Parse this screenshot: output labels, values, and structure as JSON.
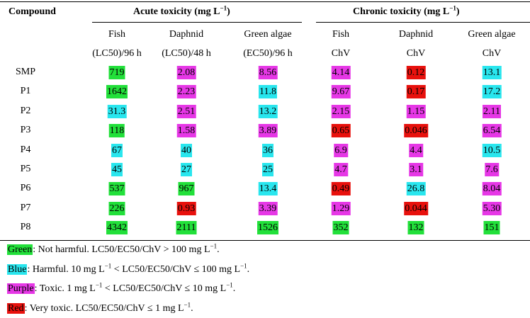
{
  "colors": {
    "green": "#22e03a",
    "blue": "#29e6ee",
    "purple": "#e637e6",
    "red": "#e8110d"
  },
  "header": {
    "compound": "Compound",
    "acute": "Acute toxicity (mg L",
    "chronic": "Chronic toxicity (mg L",
    "unit_exp": "−1",
    "close": ")"
  },
  "columns": [
    {
      "organism": "Fish",
      "metric": "(LC50)/96 h"
    },
    {
      "organism": "Daphnid",
      "metric": "(LC50)/48 h"
    },
    {
      "organism": "Green algae",
      "metric": "(EC50)/96 h"
    },
    {
      "organism": "Fish",
      "metric": "ChV"
    },
    {
      "organism": "Daphnid",
      "metric": "ChV"
    },
    {
      "organism": "Green algae",
      "metric": "ChV"
    }
  ],
  "rows": [
    {
      "name": "SMP",
      "cells": [
        {
          "v": "719",
          "c": "green"
        },
        {
          "v": "2.08",
          "c": "purple"
        },
        {
          "v": "8.56",
          "c": "purple"
        },
        {
          "v": "4.14",
          "c": "purple"
        },
        {
          "v": "0.12",
          "c": "red"
        },
        {
          "v": "13.1",
          "c": "blue"
        }
      ]
    },
    {
      "name": "P1",
      "cells": [
        {
          "v": "1642",
          "c": "green"
        },
        {
          "v": "2.23",
          "c": "purple"
        },
        {
          "v": "11.8",
          "c": "blue"
        },
        {
          "v": "9.67",
          "c": "purple"
        },
        {
          "v": "0.17",
          "c": "red"
        },
        {
          "v": "17.2",
          "c": "blue"
        }
      ]
    },
    {
      "name": "P2",
      "cells": [
        {
          "v": "31.3",
          "c": "blue"
        },
        {
          "v": "2.51",
          "c": "purple"
        },
        {
          "v": "13.2",
          "c": "blue"
        },
        {
          "v": "2.15",
          "c": "purple"
        },
        {
          "v": "1.15",
          "c": "purple"
        },
        {
          "v": "2.11",
          "c": "purple"
        }
      ]
    },
    {
      "name": "P3",
      "cells": [
        {
          "v": "118",
          "c": "green"
        },
        {
          "v": "1.58",
          "c": "purple"
        },
        {
          "v": "3.89",
          "c": "purple"
        },
        {
          "v": "0.65",
          "c": "red"
        },
        {
          "v": "0.046",
          "c": "red"
        },
        {
          "v": "6.54",
          "c": "purple"
        }
      ]
    },
    {
      "name": "P4",
      "cells": [
        {
          "v": "67",
          "c": "blue"
        },
        {
          "v": "40",
          "c": "blue"
        },
        {
          "v": "36",
          "c": "blue"
        },
        {
          "v": "6.9",
          "c": "purple"
        },
        {
          "v": "4.4",
          "c": "purple"
        },
        {
          "v": "10.5",
          "c": "blue"
        }
      ]
    },
    {
      "name": "P5",
      "cells": [
        {
          "v": "45",
          "c": "blue"
        },
        {
          "v": "27",
          "c": "blue"
        },
        {
          "v": "25",
          "c": "blue"
        },
        {
          "v": "4.7",
          "c": "purple"
        },
        {
          "v": "3.1",
          "c": "purple"
        },
        {
          "v": "7.6",
          "c": "purple"
        }
      ]
    },
    {
      "name": "P6",
      "cells": [
        {
          "v": "537",
          "c": "green"
        },
        {
          "v": "967",
          "c": "green"
        },
        {
          "v": "13.4",
          "c": "blue"
        },
        {
          "v": "0.49",
          "c": "red"
        },
        {
          "v": "26.8",
          "c": "blue"
        },
        {
          "v": "8.04",
          "c": "purple"
        }
      ]
    },
    {
      "name": "P7",
      "cells": [
        {
          "v": "226",
          "c": "green"
        },
        {
          "v": "0.93",
          "c": "red"
        },
        {
          "v": "3.39",
          "c": "purple"
        },
        {
          "v": "1.29",
          "c": "purple"
        },
        {
          "v": "0.044",
          "c": "red"
        },
        {
          "v": "5.30",
          "c": "purple"
        }
      ]
    },
    {
      "name": "P8",
      "cells": [
        {
          "v": "4342",
          "c": "green"
        },
        {
          "v": "2111",
          "c": "green"
        },
        {
          "v": "1526",
          "c": "green"
        },
        {
          "v": "352",
          "c": "green"
        },
        {
          "v": "132",
          "c": "green"
        },
        {
          "v": "151",
          "c": "green"
        }
      ]
    }
  ],
  "legend": [
    {
      "word": "Green",
      "color": "green",
      "text_a": ": Not harmful. LC50/EC50/ChV > 100 mg L",
      "exp": "−1",
      "text_b": "."
    },
    {
      "word": "Blue",
      "color": "blue",
      "text_a": ": Harmful. 10 mg L",
      "exp": "−1",
      "text_mid": " < LC50/EC50/ChV ≤ 100 mg L",
      "exp2": "−1",
      "text_b": "."
    },
    {
      "word": "Purple",
      "color": "purple",
      "text_a": ": Toxic. 1 mg L",
      "exp": "−1",
      "text_mid": " < LC50/EC50/ChV ≤ 10 mg L",
      "exp2": "−1",
      "text_b": "."
    },
    {
      "word": "Red",
      "color": "red",
      "text_a": ": Very toxic. LC50/EC50/ChV ≤ 1 mg L",
      "exp": "−1",
      "text_b": "."
    }
  ]
}
